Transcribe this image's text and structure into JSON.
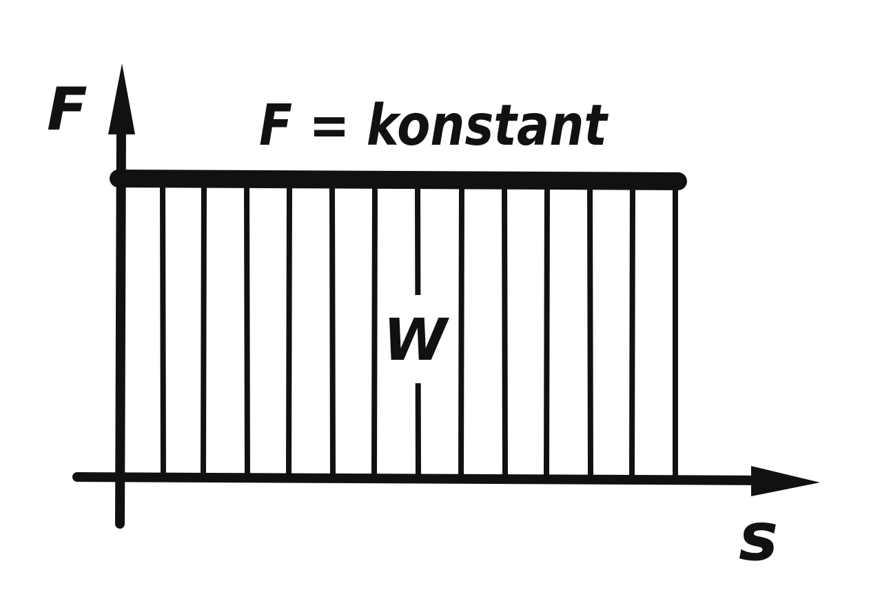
{
  "diagram": {
    "y_axis_label": "F",
    "x_axis_label": "s",
    "constant_label": "F = konstant",
    "area_label": "W"
  },
  "colors": {
    "ink": "#111111",
    "background": "#ffffff"
  }
}
